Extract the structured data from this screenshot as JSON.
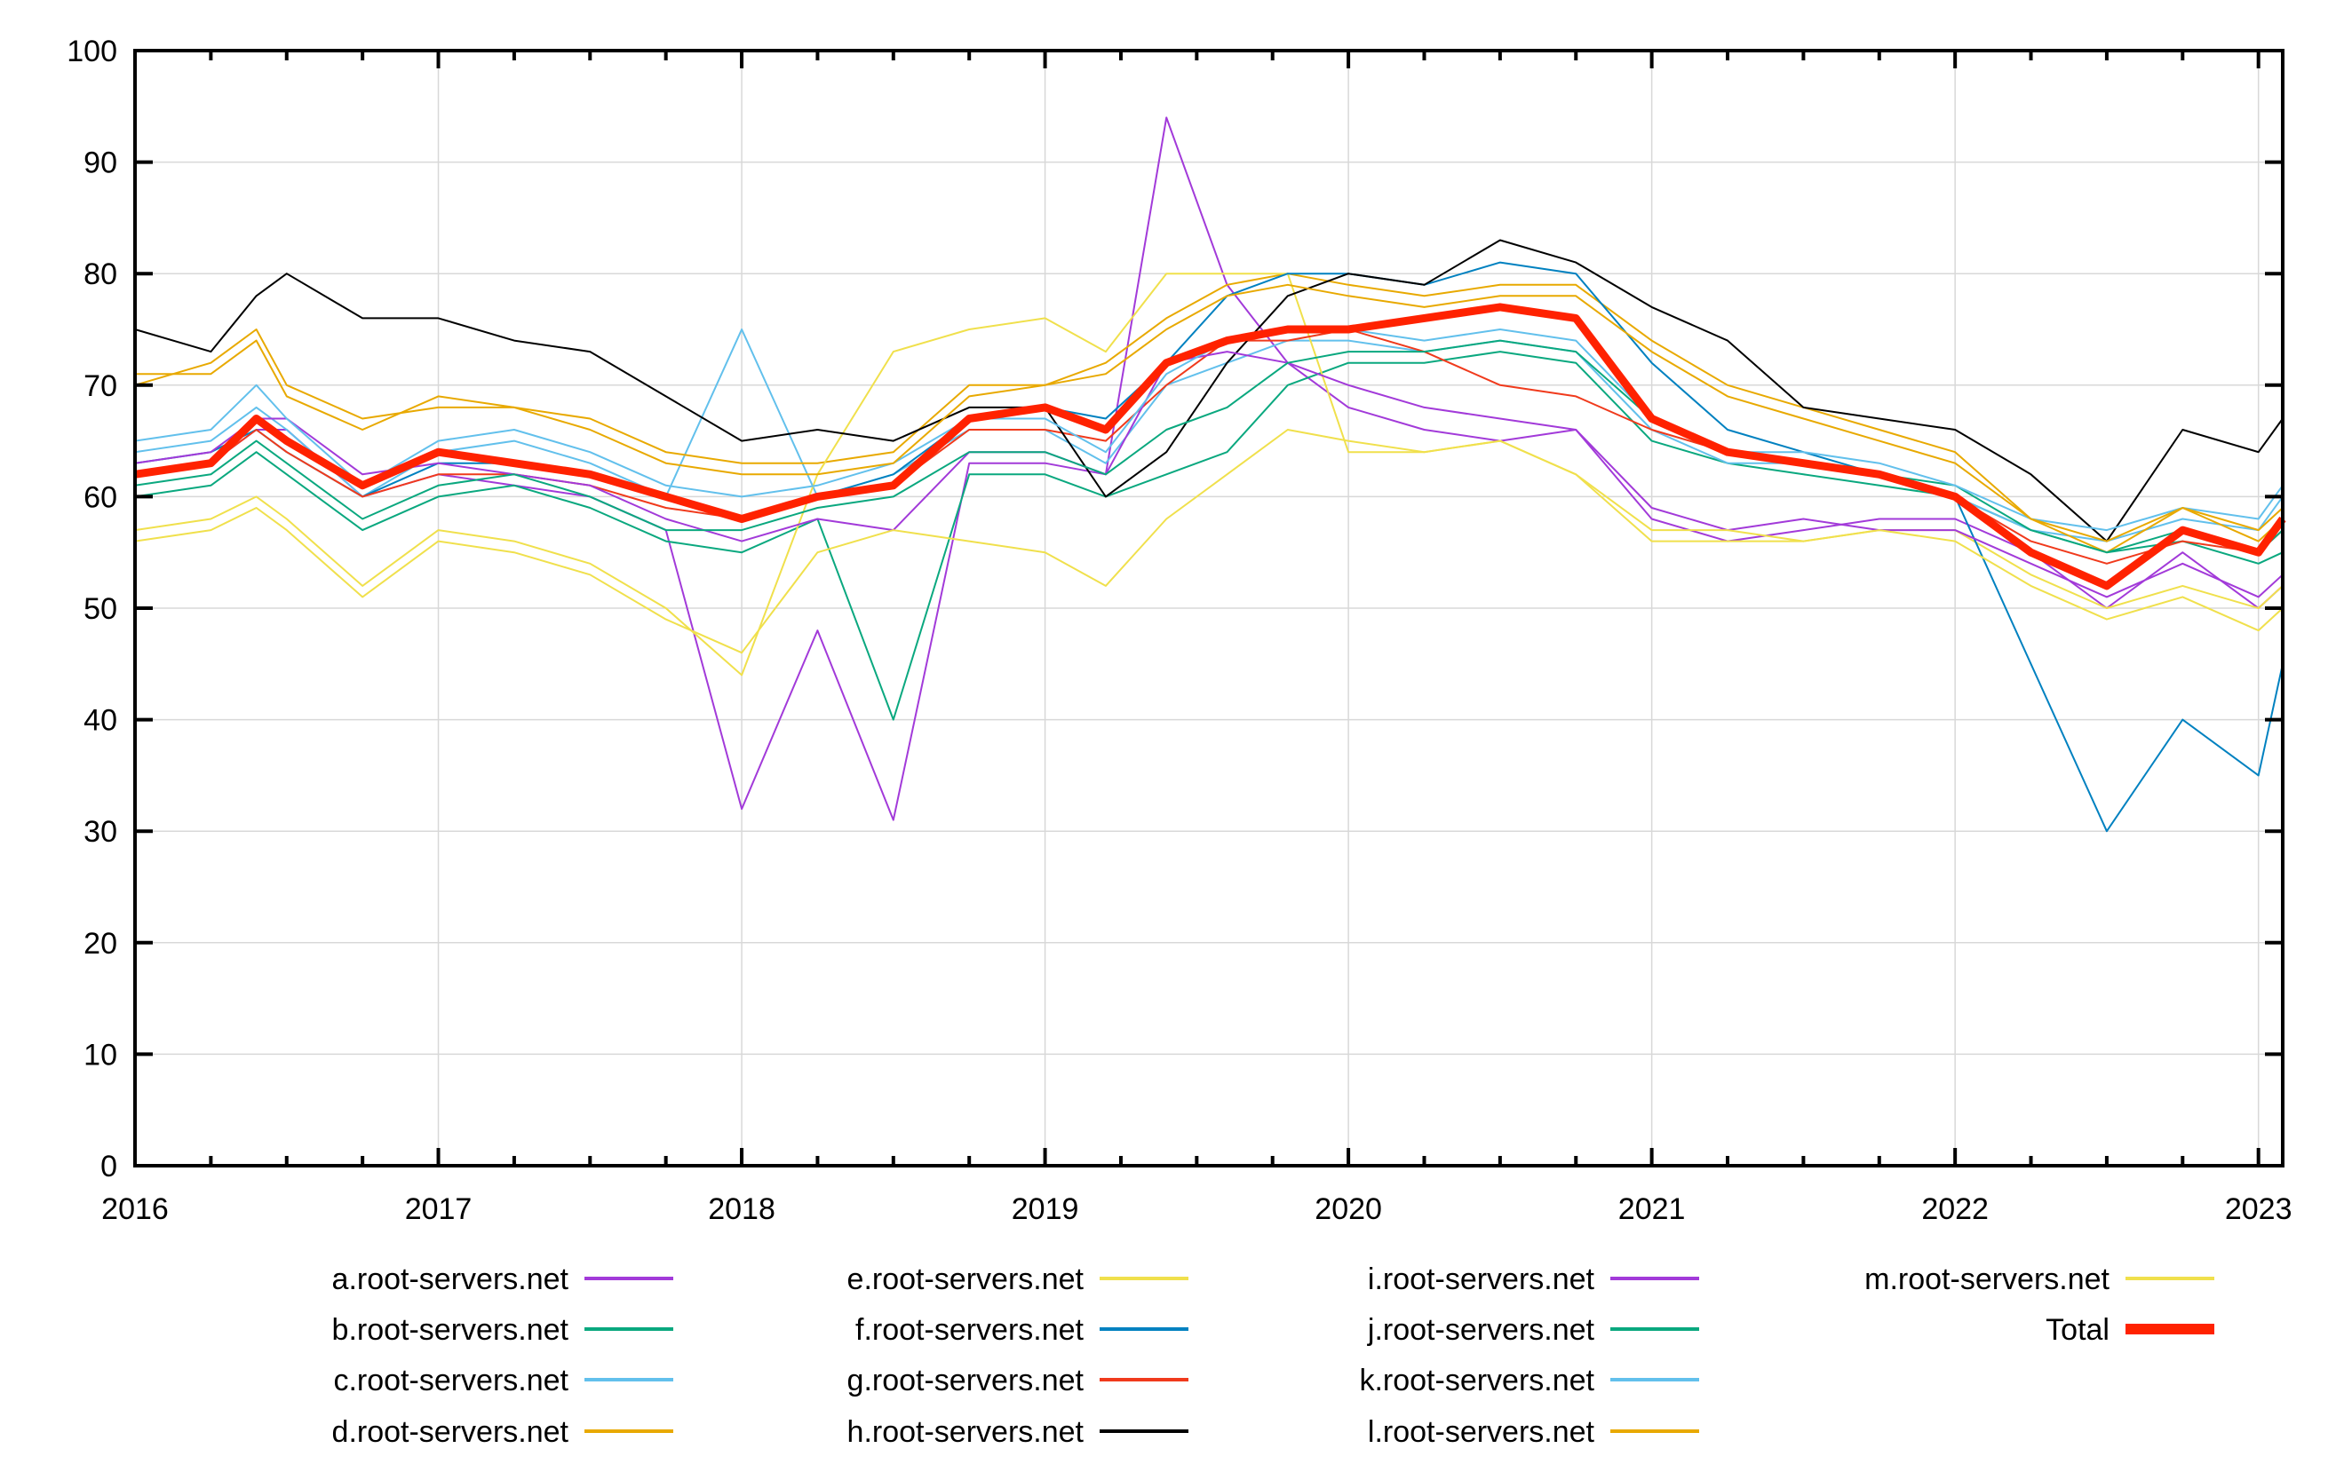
{
  "chart_data": {
    "type": "line",
    "title": "",
    "xlabel": "",
    "ylabel": "",
    "xlim": [
      2016.0,
      2023.08
    ],
    "ylim": [
      0,
      100
    ],
    "grid": true,
    "legend_placement": "bottom",
    "x_ticks": [
      "2016",
      "2017",
      "2018",
      "2019",
      "2020",
      "2021",
      "2022",
      "2023"
    ],
    "x_tick_values": [
      2016,
      2017,
      2018,
      2019,
      2020,
      2021,
      2022,
      2023
    ],
    "y_ticks": [
      "0",
      "10",
      "20",
      "30",
      "40",
      "50",
      "60",
      "70",
      "80",
      "90",
      "100"
    ],
    "y_tick_values": [
      0,
      10,
      20,
      30,
      40,
      50,
      60,
      70,
      80,
      90,
      100
    ],
    "x": [
      2016.0,
      2016.25,
      2016.4,
      2016.5,
      2016.75,
      2017.0,
      2017.25,
      2017.5,
      2017.75,
      2018.0,
      2018.25,
      2018.5,
      2018.75,
      2019.0,
      2019.2,
      2019.4,
      2019.6,
      2019.8,
      2020.0,
      2020.25,
      2020.5,
      2020.75,
      2021.0,
      2021.25,
      2021.5,
      2021.75,
      2022.0,
      2022.25,
      2022.5,
      2022.75,
      2023.0,
      2023.08
    ],
    "series": [
      {
        "name": "a.root-servers.net",
        "color": "#a23ad9",
        "width": 2,
        "values": [
          62,
          63,
          66,
          66,
          60,
          62,
          61,
          60,
          57,
          32,
          48,
          31,
          63,
          63,
          62,
          94,
          79,
          72,
          68,
          66,
          65,
          66,
          58,
          56,
          57,
          58,
          58,
          55,
          50,
          55,
          50,
          52
        ]
      },
      {
        "name": "b.root-servers.net",
        "color": "#0aa87f",
        "width": 2,
        "values": [
          60,
          61,
          64,
          62,
          57,
          60,
          61,
          59,
          56,
          55,
          58,
          40,
          62,
          62,
          60,
          62,
          64,
          70,
          72,
          72,
          73,
          72,
          65,
          63,
          62,
          61,
          60,
          57,
          55,
          56,
          54,
          55
        ]
      },
      {
        "name": "c.root-servers.net",
        "color": "#62c0ec",
        "width": 2,
        "values": [
          64,
          65,
          68,
          66,
          60,
          64,
          65,
          63,
          60,
          75,
          60,
          62,
          66,
          66,
          63,
          70,
          72,
          74,
          74,
          73,
          74,
          73,
          66,
          63,
          63,
          62,
          60,
          57,
          56,
          58,
          57,
          60
        ]
      },
      {
        "name": "d.root-servers.net",
        "color": "#e8a900",
        "width": 2,
        "values": [
          70,
          72,
          75,
          70,
          67,
          68,
          68,
          67,
          64,
          63,
          63,
          64,
          70,
          70,
          72,
          76,
          79,
          80,
          79,
          78,
          79,
          79,
          74,
          70,
          68,
          66,
          64,
          58,
          55,
          59,
          56,
          58
        ]
      },
      {
        "name": "e.root-servers.net",
        "color": "#f0e04c",
        "width": 2,
        "values": [
          57,
          58,
          60,
          58,
          52,
          57,
          56,
          54,
          50,
          44,
          62,
          73,
          75,
          76,
          73,
          80,
          80,
          80,
          64,
          64,
          65,
          62,
          56,
          56,
          56,
          57,
          57,
          53,
          50,
          52,
          50,
          52
        ]
      },
      {
        "name": "f.root-servers.net",
        "color": "#0081c0",
        "width": 2,
        "values": [
          63,
          64,
          66,
          64,
          60,
          63,
          63,
          62,
          60,
          58,
          60,
          62,
          67,
          68,
          67,
          72,
          78,
          80,
          80,
          79,
          81,
          80,
          72,
          66,
          64,
          62,
          60,
          45,
          30,
          40,
          35,
          45
        ]
      },
      {
        "name": "g.root-servers.net",
        "color": "#f03a1c",
        "width": 2,
        "values": [
          62,
          63,
          66,
          64,
          60,
          62,
          62,
          61,
          59,
          58,
          60,
          61,
          66,
          66,
          65,
          70,
          74,
          74,
          75,
          73,
          70,
          69,
          66,
          64,
          63,
          62,
          60,
          56,
          54,
          56,
          55,
          57
        ]
      },
      {
        "name": "h.root-servers.net",
        "color": "#000000",
        "width": 2,
        "values": [
          75,
          73,
          78,
          80,
          76,
          76,
          74,
          73,
          69,
          65,
          66,
          65,
          68,
          68,
          60,
          64,
          72,
          78,
          80,
          79,
          83,
          81,
          77,
          74,
          68,
          67,
          66,
          62,
          56,
          66,
          64,
          67
        ]
      },
      {
        "name": "i.root-servers.net",
        "color": "#a23ad9",
        "width": 2,
        "values": [
          63,
          64,
          67,
          67,
          62,
          63,
          62,
          61,
          58,
          56,
          58,
          57,
          64,
          64,
          62,
          72,
          73,
          72,
          70,
          68,
          67,
          66,
          59,
          57,
          58,
          57,
          57,
          54,
          51,
          54,
          51,
          53
        ]
      },
      {
        "name": "j.root-servers.net",
        "color": "#0aa87f",
        "width": 2,
        "values": [
          61,
          62,
          65,
          63,
          58,
          61,
          62,
          60,
          57,
          57,
          59,
          60,
          64,
          64,
          62,
          66,
          68,
          72,
          73,
          73,
          74,
          73,
          67,
          64,
          63,
          62,
          61,
          57,
          55,
          57,
          55,
          57
        ]
      },
      {
        "name": "k.root-servers.net",
        "color": "#62c0ec",
        "width": 2,
        "values": [
          65,
          66,
          70,
          67,
          61,
          65,
          66,
          64,
          61,
          60,
          61,
          63,
          67,
          67,
          64,
          71,
          74,
          75,
          75,
          74,
          75,
          74,
          67,
          64,
          64,
          63,
          61,
          58,
          57,
          59,
          58,
          61
        ]
      },
      {
        "name": "l.root-servers.net",
        "color": "#e8a900",
        "width": 2,
        "values": [
          71,
          71,
          74,
          69,
          66,
          69,
          68,
          66,
          63,
          62,
          62,
          63,
          69,
          70,
          71,
          75,
          78,
          79,
          78,
          77,
          78,
          78,
          73,
          69,
          67,
          65,
          63,
          58,
          56,
          59,
          57,
          59
        ]
      },
      {
        "name": "m.root-servers.net",
        "color": "#f0e04c",
        "width": 2,
        "values": [
          56,
          57,
          59,
          57,
          51,
          56,
          55,
          53,
          49,
          46,
          55,
          57,
          56,
          55,
          52,
          58,
          62,
          66,
          65,
          64,
          65,
          62,
          57,
          57,
          56,
          57,
          56,
          52,
          49,
          51,
          48,
          50
        ]
      },
      {
        "name": "Total",
        "color": "#ff2200",
        "width": 9,
        "values": [
          62,
          63,
          67,
          65,
          61,
          64,
          63,
          62,
          60,
          58,
          60,
          61,
          67,
          68,
          66,
          72,
          74,
          75,
          75,
          76,
          77,
          76,
          67,
          64,
          63,
          62,
          60,
          55,
          52,
          57,
          55,
          58
        ]
      }
    ],
    "annotations": []
  }
}
